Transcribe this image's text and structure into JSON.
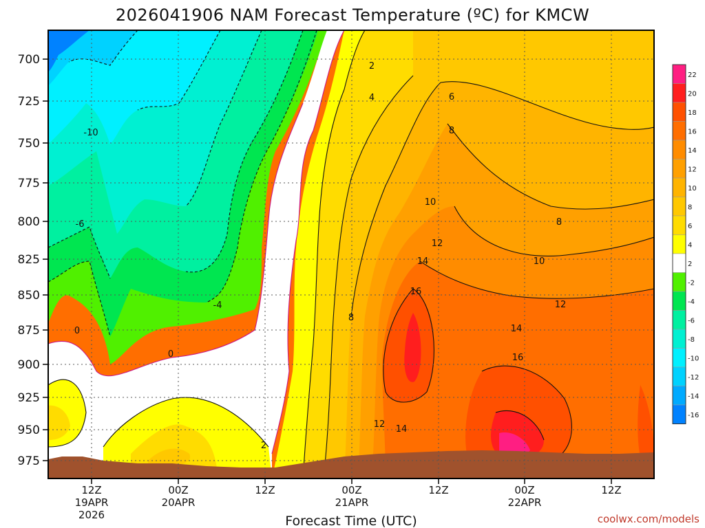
{
  "chart_data": {
    "type": "heatmap",
    "title": "2026041906 NAM Forecast Temperature (ºC) for KMCW",
    "xlabel": "Forecast Time (UTC)",
    "ylabel": "",
    "y_axis": {
      "unit": "hPa",
      "reversed": true,
      "ticks": [
        700,
        725,
        750,
        775,
        800,
        825,
        850,
        875,
        900,
        925,
        950,
        975
      ]
    },
    "x_axis": {
      "ticks": [
        {
          "line1": "12Z",
          "line2": "19APR",
          "line3": "2026"
        },
        {
          "line1": "00Z",
          "line2": "20APR",
          "line3": ""
        },
        {
          "line1": "12Z",
          "line2": "",
          "line3": ""
        },
        {
          "line1": "00Z",
          "line2": "21APR",
          "line3": ""
        },
        {
          "line1": "12Z",
          "line2": "",
          "line3": ""
        },
        {
          "line1": "00Z",
          "line2": "22APR",
          "line3": ""
        },
        {
          "line1": "12Z",
          "line2": "",
          "line3": ""
        }
      ]
    },
    "grid": true,
    "colorbar": {
      "placement": "right",
      "levels": [
        22,
        20,
        18,
        16,
        14,
        12,
        10,
        8,
        6,
        4,
        2,
        -2,
        -4,
        -6,
        -8,
        -10,
        -12,
        -14,
        -16
      ],
      "colors": [
        "#ff1e82",
        "#ff1e1e",
        "#ff5000",
        "#ff6e00",
        "#ff8c00",
        "#ffa000",
        "#ffb400",
        "#ffc800",
        "#ffdc00",
        "#ffff00",
        "#ffffff",
        "#50f000",
        "#00e650",
        "#00f0a0",
        "#00f0d2",
        "#00f0ff",
        "#00d2ff",
        "#00aaff",
        "#0082ff"
      ]
    },
    "contour_labels": [
      {
        "text": "2"
      },
      {
        "text": "4"
      },
      {
        "text": "6"
      },
      {
        "text": "8"
      },
      {
        "text": "-10"
      },
      {
        "text": "10"
      },
      {
        "text": "8"
      },
      {
        "text": "12"
      },
      {
        "text": "-6"
      },
      {
        "text": "14"
      },
      {
        "text": "10"
      },
      {
        "text": "16"
      },
      {
        "text": "-4"
      },
      {
        "text": "12"
      },
      {
        "text": "8"
      },
      {
        "text": "0"
      },
      {
        "text": "14"
      },
      {
        "text": "0"
      },
      {
        "text": "16"
      },
      {
        "text": "12"
      },
      {
        "text": "14"
      },
      {
        "text": "2"
      }
    ],
    "terrain_color": "#a0522d"
  },
  "credit": "coolwx.com/models"
}
